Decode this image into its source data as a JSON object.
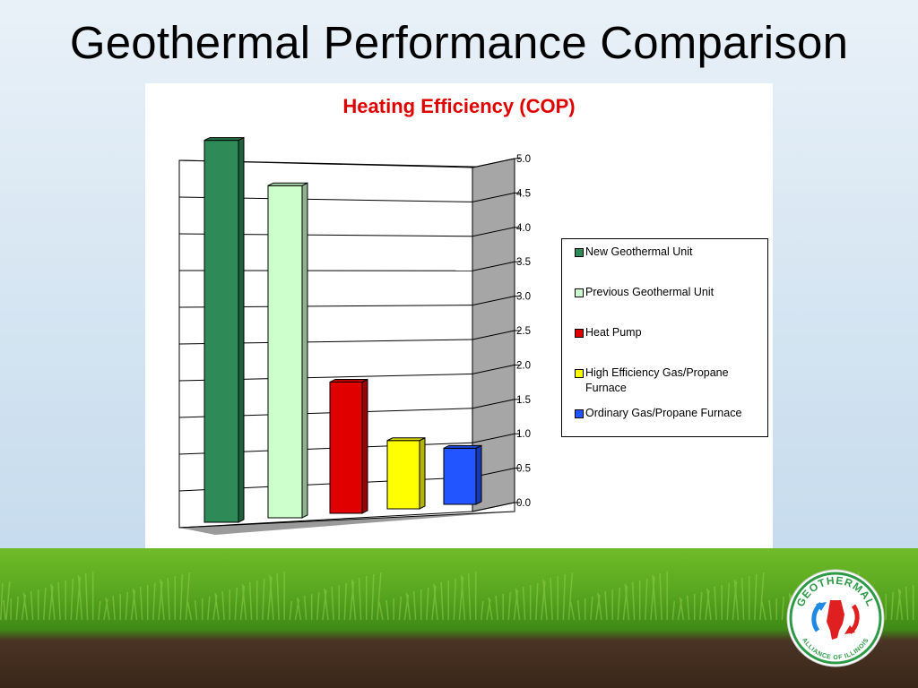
{
  "slide": {
    "title": "Geothermal Performance Comparison"
  },
  "logo": {
    "text_top": "GEOTHERMAL",
    "text_bottom": "ALLIANCE OF ILLINOIS",
    "icon": "illinois-state-arrows-icon"
  },
  "colors": {
    "title_red": "#e00000",
    "series": [
      "#2e8b57",
      "#ccffcc",
      "#e00000",
      "#ffff00",
      "#2255ff"
    ]
  },
  "chart_data": {
    "type": "bar",
    "title": "Heating Efficiency (COP)",
    "xlabel": "",
    "ylabel": "",
    "ylim": [
      0,
      5
    ],
    "yticks": [
      "0.0",
      "0.5",
      "1.0",
      "1.5",
      "2.0",
      "2.5",
      "3.0",
      "3.5",
      "4.0",
      "4.5",
      "5.0"
    ],
    "grid": true,
    "legend_position": "right",
    "series": [
      {
        "name": "New Geothermal Unit",
        "value": 5.2,
        "color": "#2e8b57"
      },
      {
        "name": "Previous Geothermal Unit",
        "value": 4.6,
        "color": "#ccffcc"
      },
      {
        "name": "Heat Pump",
        "value": 1.85,
        "color": "#e00000"
      },
      {
        "name": "High Efficiency Gas/Propane Furnace",
        "value": 0.98,
        "color": "#ffff00"
      },
      {
        "name": "Ordinary Gas/Propane Furnace",
        "value": 0.82,
        "color": "#2255ff"
      }
    ]
  }
}
